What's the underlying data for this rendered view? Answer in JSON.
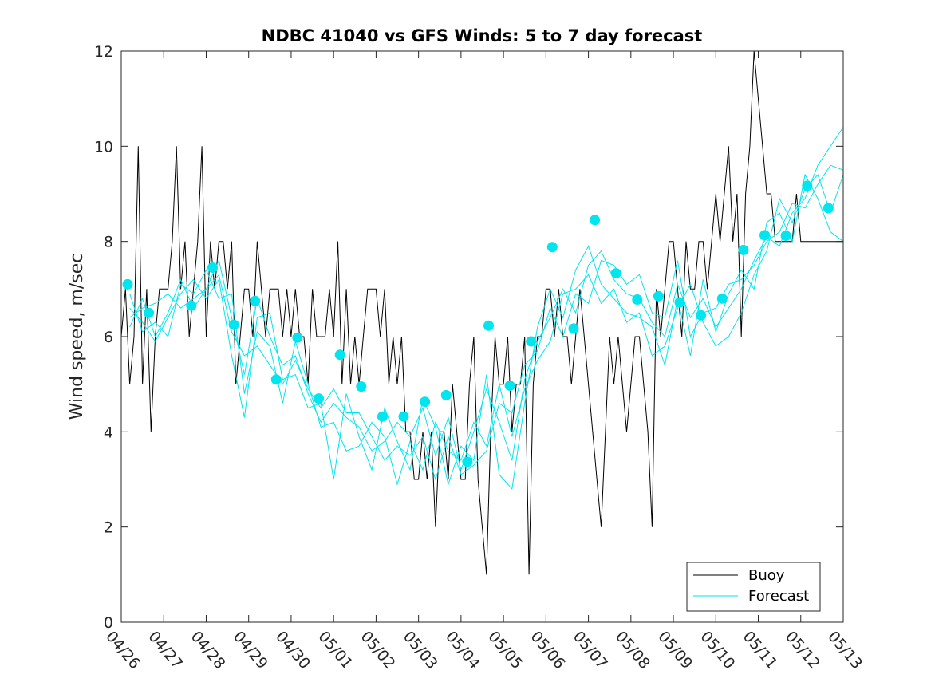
{
  "chart_data": {
    "type": "line",
    "title": "NDBC 41040 vs GFS Winds: 5 to 7 day forecast",
    "xlabel": "",
    "ylabel": "Wind speed, m/sec",
    "x_tick_labels": [
      "04/26",
      "04/27",
      "04/28",
      "04/29",
      "04/30",
      "05/01",
      "05/02",
      "05/03",
      "05/04",
      "05/05",
      "05/06",
      "05/07",
      "05/08",
      "05/09",
      "05/10",
      "05/11",
      "05/12",
      "05/13"
    ],
    "x_unit": "day index (0 = 04/26, 17 = 05/13)",
    "xlim": [
      0,
      17
    ],
    "ylim": [
      0,
      12
    ],
    "y_ticks": [
      0,
      2,
      4,
      6,
      8,
      10,
      12
    ],
    "grid": false,
    "legend": {
      "position": "bottom-right",
      "entries": [
        "Buoy",
        "Forecast"
      ]
    },
    "colors": {
      "buoy": "#000000",
      "forecast": "#00e5ee",
      "markers": "#00e5ee",
      "axes": "#262626"
    },
    "series": [
      {
        "name": "Buoy",
        "x": [
          0,
          0.1,
          0.2,
          0.3,
          0.4,
          0.5,
          0.6,
          0.7,
          0.8,
          0.9,
          1.0,
          1.1,
          1.2,
          1.3,
          1.4,
          1.5,
          1.6,
          1.7,
          1.8,
          1.9,
          2.0,
          2.1,
          2.2,
          2.3,
          2.4,
          2.5,
          2.6,
          2.7,
          2.8,
          2.9,
          3.0,
          3.1,
          3.2,
          3.3,
          3.4,
          3.5,
          3.6,
          3.7,
          3.8,
          3.9,
          4.0,
          4.1,
          4.2,
          4.3,
          4.4,
          4.5,
          4.6,
          4.7,
          4.8,
          4.9,
          5.0,
          5.1,
          5.2,
          5.3,
          5.4,
          5.5,
          5.6,
          5.7,
          5.8,
          5.9,
          6.0,
          6.1,
          6.2,
          6.3,
          6.4,
          6.5,
          6.6,
          6.7,
          6.8,
          6.9,
          7.0,
          7.1,
          7.2,
          7.3,
          7.4,
          7.5,
          7.6,
          7.7,
          7.8,
          7.9,
          8.0,
          8.1,
          8.2,
          8.3,
          8.4,
          8.5,
          8.6,
          8.7,
          8.8,
          8.9,
          9.0,
          9.1,
          9.2,
          9.3,
          9.4,
          9.5,
          9.6,
          9.7,
          9.8,
          9.9,
          10.0,
          10.1,
          10.2,
          10.3,
          10.4,
          10.5,
          10.6,
          10.7,
          10.8,
          10.9,
          11.0,
          11.1,
          11.2,
          11.3,
          11.4,
          11.5,
          11.6,
          11.7,
          11.8,
          11.9,
          12.0,
          12.1,
          12.2,
          12.3,
          12.4,
          12.5,
          12.6,
          12.7,
          12.8,
          12.9,
          13.0,
          13.1,
          13.2,
          13.3,
          13.4,
          13.5,
          13.6,
          13.7,
          13.8,
          13.9,
          14.0,
          14.1,
          14.2,
          14.3,
          14.4,
          14.5,
          14.6,
          14.7,
          14.8,
          14.9,
          15.0,
          15.1,
          15.2,
          15.3,
          15.4,
          15.5,
          15.6,
          15.7,
          15.8,
          15.9,
          16.0,
          16.1,
          16.2,
          16.3,
          16.4,
          16.5,
          16.6,
          16.7,
          16.8,
          16.9,
          17.0
        ],
        "values": [
          6,
          7,
          5,
          6,
          10,
          5,
          7,
          4,
          6,
          7,
          7,
          7,
          8,
          10,
          7,
          8,
          6,
          7,
          8,
          10,
          6,
          8,
          7,
          8,
          8,
          7,
          8,
          5,
          6,
          7,
          7,
          6,
          8,
          7,
          6,
          7,
          7,
          7,
          6,
          7,
          6,
          7,
          6,
          6,
          5,
          7,
          6,
          6,
          6,
          7,
          6,
          8,
          5,
          7,
          5,
          6,
          5,
          6,
          7,
          7,
          7,
          6,
          7,
          5,
          6,
          5,
          6,
          4,
          4,
          3,
          3,
          4,
          3,
          4,
          2,
          4,
          4,
          3,
          5,
          4,
          3,
          3,
          5,
          6,
          3,
          2,
          1,
          4,
          6,
          5,
          5,
          6,
          4,
          5,
          5,
          6,
          1,
          5,
          6,
          6,
          7,
          7,
          6,
          7,
          6,
          6,
          5,
          6,
          7,
          6,
          5,
          4,
          3,
          2,
          4,
          6,
          5,
          6,
          5,
          4,
          5,
          6,
          6,
          5,
          4,
          2,
          7,
          6,
          7,
          8,
          8,
          7,
          6,
          8,
          7,
          7,
          8,
          8,
          7,
          8,
          9,
          8,
          9,
          10,
          8,
          9,
          6,
          9,
          10,
          12,
          11,
          10,
          9,
          9,
          8,
          8,
          8,
          8,
          8,
          9,
          8,
          8,
          8,
          8,
          8,
          8,
          8,
          8,
          8,
          8,
          8
        ]
      },
      {
        "name": "Forecast",
        "x": [
          0.2,
          0.5,
          0.8,
          1.1,
          1.4,
          1.7,
          2.0,
          2.3,
          2.6,
          2.9,
          3.2,
          3.5,
          3.8,
          4.1,
          4.4,
          4.7,
          5.0,
          5.3,
          5.6,
          5.9,
          6.2,
          6.5,
          6.8,
          7.1,
          7.4,
          7.7,
          8.0,
          8.3,
          8.6,
          8.9,
          9.2,
          9.5,
          9.8,
          10.1,
          10.4,
          10.7,
          11.0,
          11.3,
          11.6,
          11.9,
          12.2,
          12.5,
          12.8,
          13.1,
          13.4,
          13.7,
          14.0,
          14.3,
          14.6,
          14.9,
          15.2,
          15.5,
          15.8,
          16.1,
          16.4,
          16.7,
          17.0
        ],
        "values": [
          6.2,
          6.8,
          6.0,
          6.5,
          7.2,
          6.6,
          7.0,
          7.6,
          6.4,
          5.2,
          6.8,
          6.0,
          5.4,
          5.6,
          4.8,
          4.2,
          4.6,
          4.3,
          4.1,
          3.6,
          3.8,
          4.2,
          3.9,
          4.5,
          3.5,
          4.3,
          3.2,
          4.0,
          4.9,
          4.2,
          3.4,
          5.1,
          5.9,
          6.4,
          7.0,
          6.5,
          7.5,
          7.8,
          7.2,
          6.9,
          6.8,
          6.3,
          6.0,
          7.1,
          6.4,
          6.8,
          6.2,
          6.6,
          7.0,
          7.6,
          8.1,
          7.9,
          8.6,
          8.9,
          9.6,
          10.0,
          10.4
        ]
      },
      {
        "name": "Forecast",
        "x": [
          0.2,
          0.5,
          0.8,
          1.1,
          1.4,
          1.7,
          2.0,
          2.3,
          2.6,
          2.9,
          3.2,
          3.5,
          3.8,
          4.1,
          4.4,
          4.7,
          5.0,
          5.3,
          5.6,
          5.9,
          6.2,
          6.5,
          6.8,
          7.1,
          7.4,
          7.7,
          8.0,
          8.3,
          8.6,
          8.9,
          9.2,
          9.5,
          9.8,
          10.1,
          10.4,
          10.7,
          11.0,
          11.3,
          11.6,
          11.9,
          12.2,
          12.5,
          12.8,
          13.1,
          13.4,
          13.7,
          14.0,
          14.3,
          14.6,
          14.9,
          15.2,
          15.5,
          15.8,
          16.1,
          16.4,
          16.7,
          17.0
        ],
        "values": [
          6.6,
          6.3,
          5.9,
          6.4,
          6.9,
          7.2,
          6.8,
          7.2,
          5.6,
          4.3,
          6.4,
          6.5,
          5.1,
          5.2,
          4.5,
          4.6,
          3.0,
          4.8,
          3.9,
          3.2,
          4.5,
          3.8,
          3.2,
          4.7,
          4.1,
          2.9,
          3.7,
          3.4,
          5.2,
          3.1,
          2.8,
          4.6,
          6.2,
          7.0,
          6.4,
          7.4,
          7.9,
          7.1,
          6.8,
          6.5,
          6.4,
          6.2,
          5.4,
          6.8,
          5.6,
          7.2,
          6.1,
          6.9,
          7.4,
          7.0,
          8.4,
          8.6,
          8.0,
          9.4,
          8.9,
          8.2,
          8.0
        ]
      },
      {
        "name": "Forecast",
        "x": [
          0.2,
          0.5,
          0.8,
          1.1,
          1.4,
          1.7,
          2.0,
          2.3,
          2.6,
          2.9,
          3.2,
          3.5,
          3.8,
          4.1,
          4.4,
          4.7,
          5.0,
          5.3,
          5.6,
          5.9,
          6.2,
          6.5,
          6.8,
          7.1,
          7.4,
          7.7,
          8.0,
          8.3,
          8.6,
          8.9,
          9.2,
          9.5,
          9.8,
          10.1,
          10.4,
          10.7,
          11.0,
          11.3,
          11.6,
          11.9,
          12.2,
          12.5,
          12.8,
          13.1,
          13.4,
          13.7,
          14.0,
          14.3,
          14.6,
          14.9,
          15.2,
          15.5,
          15.8,
          16.1,
          16.4,
          16.7,
          17.0
        ],
        "values": [
          6.9,
          6.1,
          6.3,
          6.0,
          7.1,
          6.9,
          7.4,
          6.8,
          6.9,
          4.8,
          6.1,
          5.8,
          4.6,
          5.9,
          5.0,
          4.1,
          4.2,
          3.6,
          3.7,
          4.2,
          3.9,
          2.9,
          3.8,
          3.2,
          4.2,
          3.6,
          3.4,
          4.2,
          3.7,
          5.0,
          3.9,
          4.9,
          5.5,
          5.9,
          6.9,
          7.0,
          7.3,
          6.7,
          7.0,
          6.3,
          6.5,
          5.6,
          5.8,
          6.6,
          7.1,
          6.3,
          5.8,
          6.0,
          6.5,
          7.3,
          7.8,
          8.9,
          8.4,
          9.1,
          9.4,
          8.6,
          9.4
        ]
      },
      {
        "name": "Forecast",
        "x": [
          0.2,
          0.5,
          0.8,
          1.1,
          1.4,
          1.7,
          2.0,
          2.3,
          2.6,
          2.9,
          3.2,
          3.5,
          3.8,
          4.1,
          4.4,
          4.7,
          5.0,
          5.3,
          5.6,
          5.9,
          6.2,
          6.5,
          6.8,
          7.1,
          7.4,
          7.7,
          8.0,
          8.3,
          8.6,
          8.9,
          9.2,
          9.5,
          9.8,
          10.1,
          10.4,
          10.7,
          11.0,
          11.3,
          11.6,
          11.9,
          12.2,
          12.5,
          12.8,
          13.1,
          13.4,
          13.7,
          14.0,
          14.3,
          14.6,
          14.9,
          15.2,
          15.5,
          15.8,
          16.1,
          16.4,
          16.7,
          17.0
        ],
        "values": [
          6.4,
          6.6,
          6.7,
          6.9,
          6.6,
          6.8,
          7.0,
          7.3,
          6.1,
          5.6,
          5.8,
          5.4,
          5.0,
          5.5,
          4.9,
          4.5,
          4.9,
          4.4,
          4.4,
          3.9,
          3.4,
          3.7,
          3.5,
          3.9,
          3.0,
          3.9,
          3.1,
          3.3,
          3.6,
          4.6,
          4.4,
          5.4,
          5.7,
          6.6,
          6.0,
          6.9,
          6.7,
          7.6,
          7.5,
          7.1,
          7.3,
          6.5,
          6.4,
          7.6,
          6.0,
          6.5,
          6.6,
          7.1,
          7.2,
          7.5,
          8.0,
          8.2,
          8.8,
          8.7,
          9.2,
          9.6,
          9.5
        ]
      }
    ],
    "forecast_markers": {
      "x": [
        0.15,
        0.65,
        1.65,
        2.15,
        2.65,
        3.15,
        3.65,
        4.15,
        4.65,
        5.15,
        5.65,
        6.15,
        6.65,
        7.15,
        7.65,
        8.15,
        8.65,
        9.15,
        9.65,
        10.15,
        10.65,
        11.15,
        11.65,
        12.15,
        12.65,
        13.15,
        13.65,
        14.15,
        14.65,
        15.15,
        15.65,
        16.15,
        16.65
      ],
      "values": [
        7.1,
        6.5,
        6.65,
        7.45,
        6.25,
        6.75,
        5.1,
        5.98,
        4.7,
        5.62,
        4.95,
        4.32,
        4.32,
        4.63,
        4.77,
        3.37,
        6.23,
        4.97,
        5.9,
        7.88,
        6.17,
        8.45,
        7.33,
        6.78,
        6.85,
        6.72,
        6.45,
        6.8,
        7.82,
        8.13,
        8.12,
        9.17,
        8.7
      ]
    }
  }
}
